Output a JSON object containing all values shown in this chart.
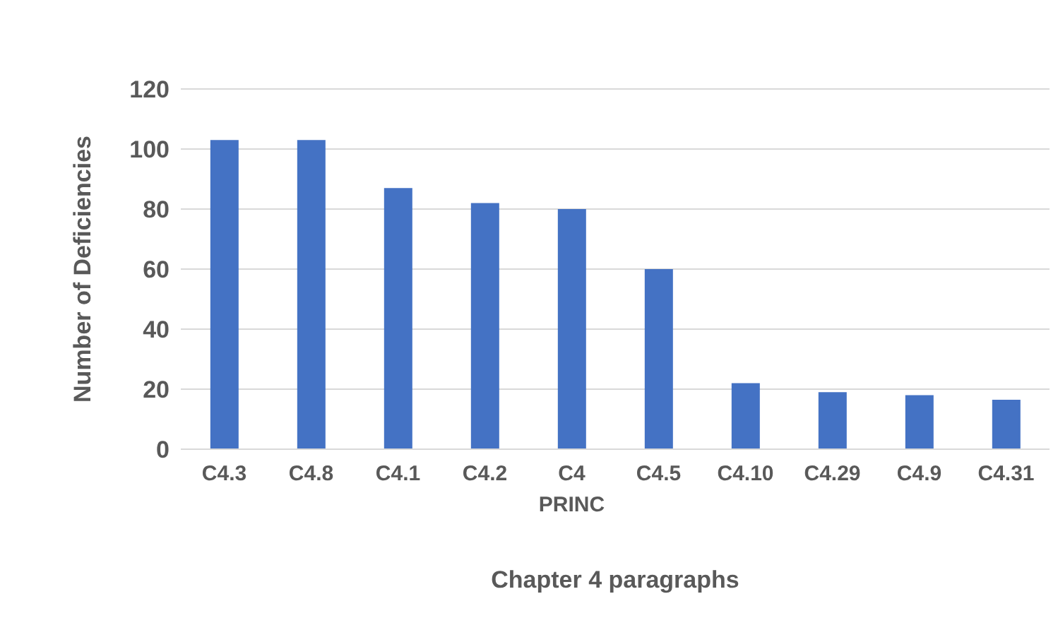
{
  "chart_data": {
    "type": "bar",
    "xlabel": "Chapter 4 paragraphs",
    "ylabel": "Number of Deficiencies",
    "categories": [
      "C4.3",
      "C4.8",
      "C4.1",
      "C4.2",
      "C4\nPRINC",
      "C4.5",
      "C4.10",
      "C4.29",
      "C4.9",
      "C4.31"
    ],
    "values": [
      103,
      103,
      87,
      82,
      80,
      60,
      22,
      19,
      18,
      16.5
    ],
    "color": "#4472c4",
    "ylim": [
      0,
      120
    ],
    "yticks": [
      0,
      20,
      40,
      60,
      80,
      100,
      120
    ],
    "grid": "y"
  }
}
